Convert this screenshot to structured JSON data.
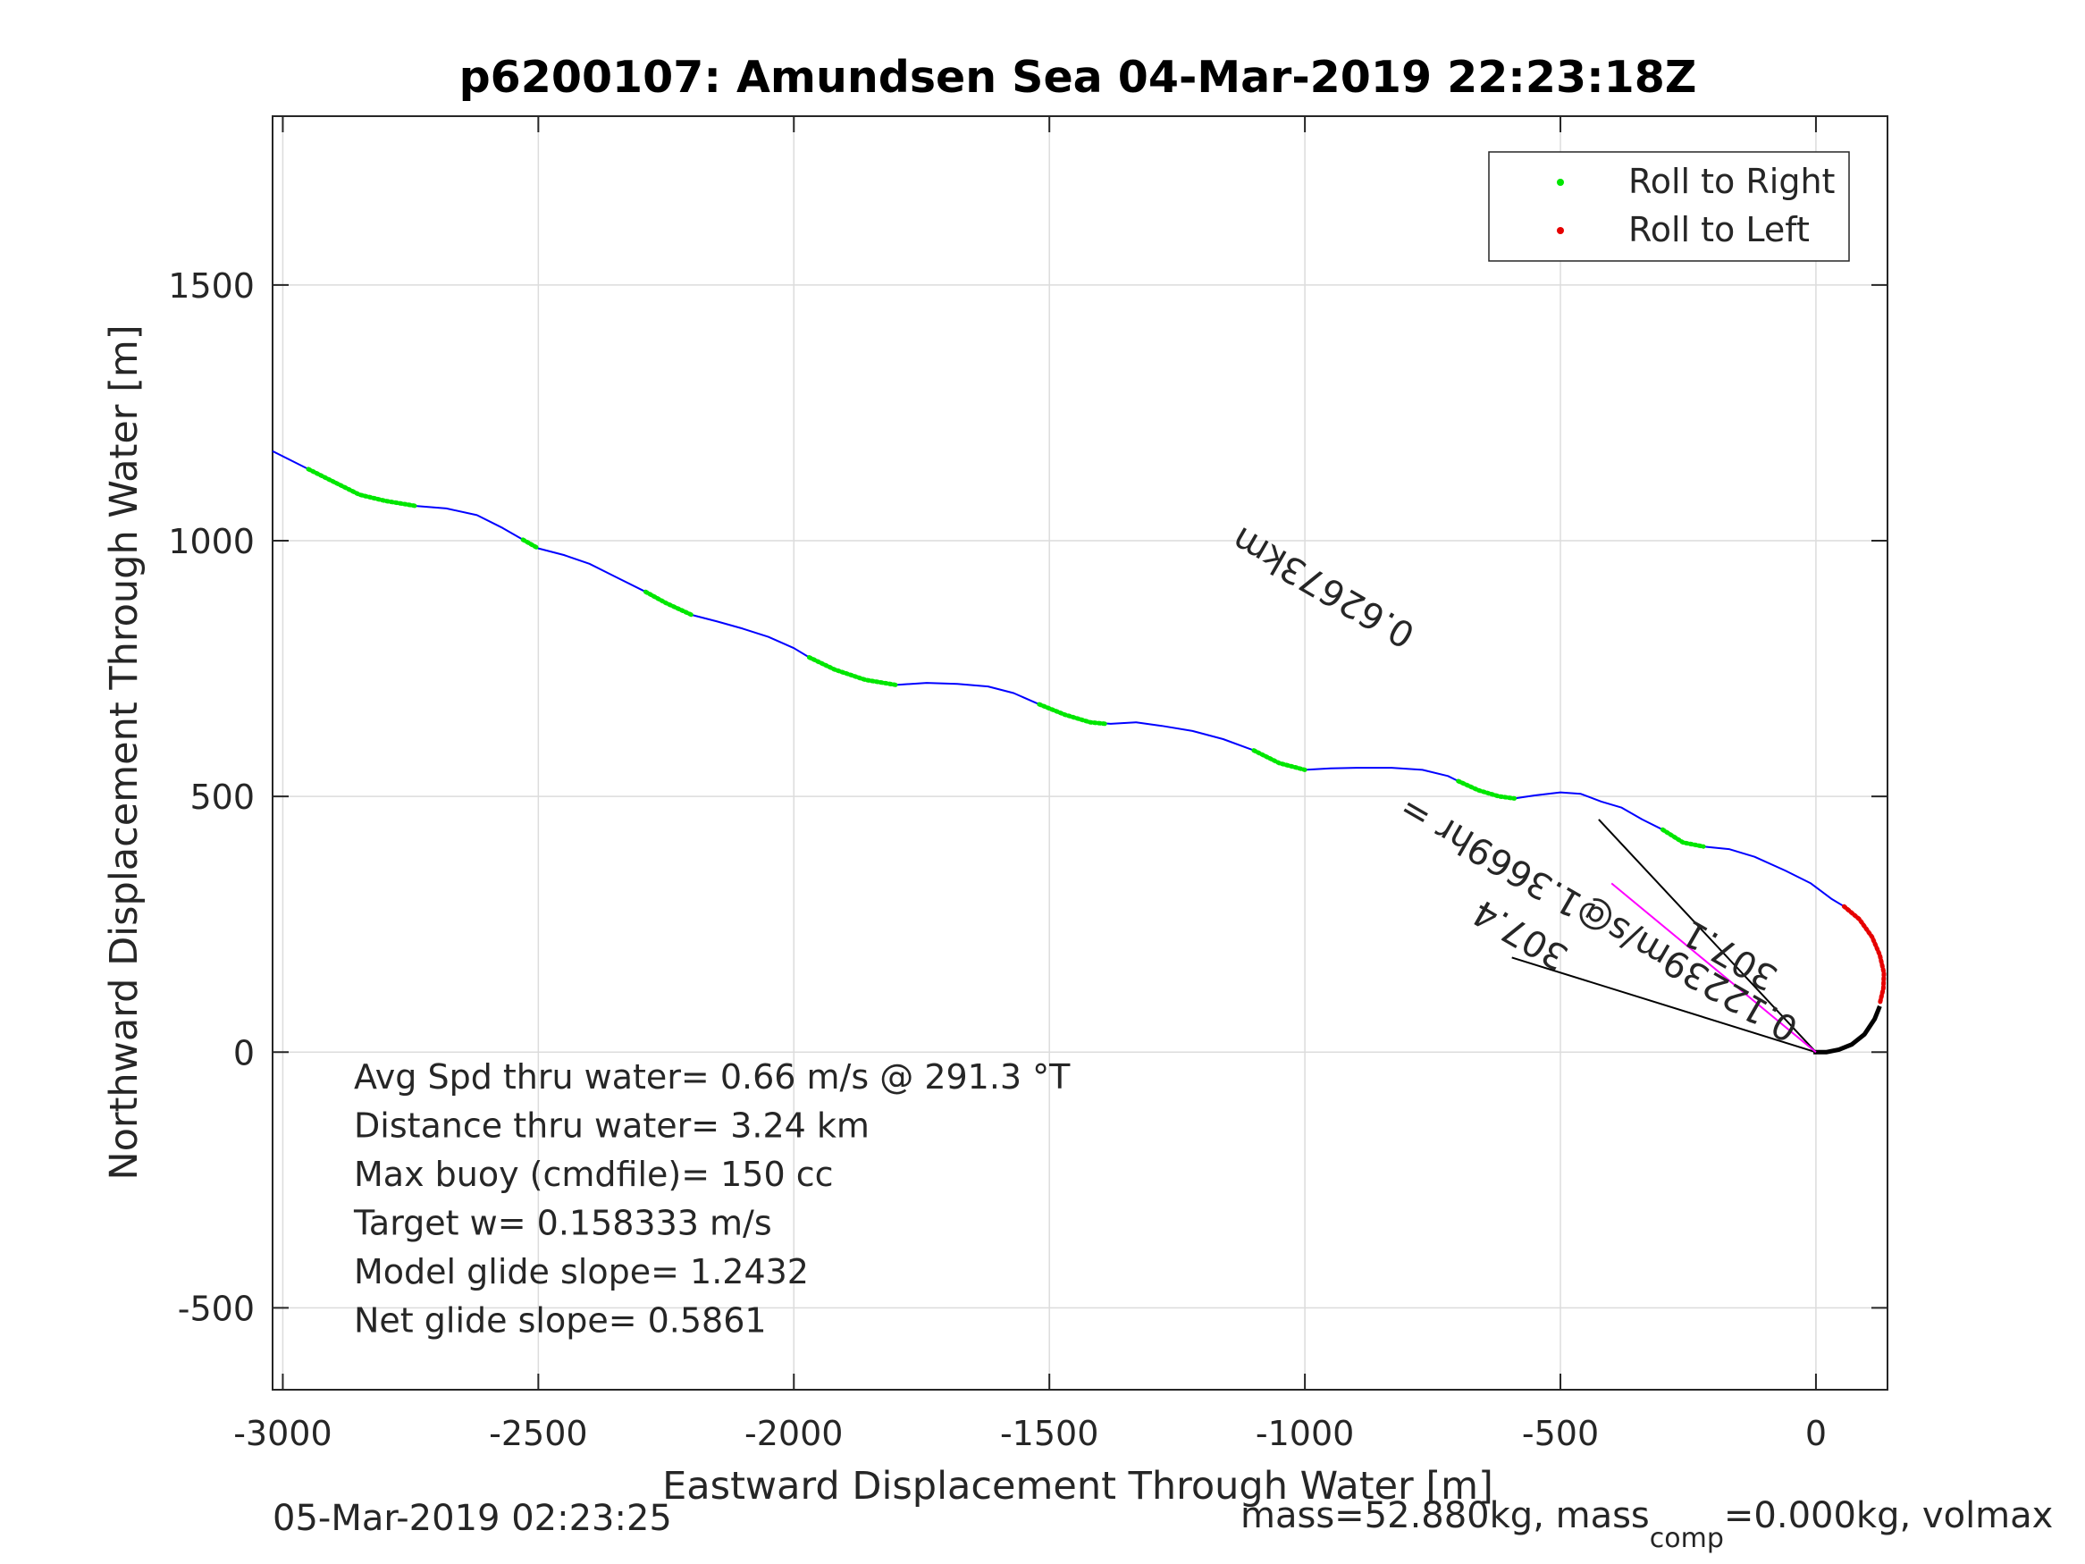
{
  "chart_data": {
    "type": "line",
    "title": "p6200107: Amundsen Sea 04-Mar-2019 22:23:18Z",
    "xlabel": "Eastward Displacement Through Water [m]",
    "ylabel": "Northward Displacement Through Water [m]",
    "xlim": [
      -3020,
      140
    ],
    "ylim": [
      -660,
      1830
    ],
    "xticks": [
      -3000,
      -2500,
      -2000,
      -1500,
      -1000,
      -500,
      0
    ],
    "xtick_labels": [
      "-3000",
      "-2500",
      "-2000",
      "-1500",
      "-1000",
      "-500",
      "0"
    ],
    "yticks": [
      -500,
      0,
      500,
      1000,
      1500
    ],
    "ytick_labels": [
      "-500",
      "0",
      "500",
      "1000",
      "1500"
    ],
    "grid": true,
    "legend_position": "top-right",
    "legend": [
      {
        "label": "Roll to Right",
        "color": "#00e600"
      },
      {
        "label": "Roll to Left",
        "color": "#e60000"
      }
    ],
    "series": [
      {
        "role": "track",
        "color": "#0000ff",
        "points": [
          [
            -3020,
            1175
          ],
          [
            -2950,
            1140
          ],
          [
            -2900,
            1115
          ],
          [
            -2850,
            1090
          ],
          [
            -2800,
            1078
          ],
          [
            -2740,
            1068
          ],
          [
            -2680,
            1063
          ],
          [
            -2620,
            1050
          ],
          [
            -2570,
            1025
          ],
          [
            -2530,
            1002
          ],
          [
            -2500,
            985
          ],
          [
            -2450,
            972
          ],
          [
            -2400,
            955
          ],
          [
            -2350,
            930
          ],
          [
            -2290,
            900
          ],
          [
            -2250,
            878
          ],
          [
            -2200,
            855
          ],
          [
            -2150,
            842
          ],
          [
            -2100,
            828
          ],
          [
            -2050,
            812
          ],
          [
            -2000,
            790
          ],
          [
            -1970,
            772
          ],
          [
            -1920,
            748
          ],
          [
            -1860,
            728
          ],
          [
            -1800,
            718
          ],
          [
            -1740,
            722
          ],
          [
            -1680,
            720
          ],
          [
            -1620,
            715
          ],
          [
            -1570,
            702
          ],
          [
            -1520,
            680
          ],
          [
            -1470,
            660
          ],
          [
            -1420,
            645
          ],
          [
            -1380,
            642
          ],
          [
            -1330,
            645
          ],
          [
            -1280,
            638
          ],
          [
            -1220,
            628
          ],
          [
            -1160,
            612
          ],
          [
            -1100,
            590
          ],
          [
            -1050,
            565
          ],
          [
            -1000,
            552
          ],
          [
            -950,
            555
          ],
          [
            -900,
            556
          ],
          [
            -830,
            556
          ],
          [
            -770,
            552
          ],
          [
            -720,
            540
          ],
          [
            -700,
            530
          ],
          [
            -660,
            512
          ],
          [
            -620,
            500
          ],
          [
            -590,
            496
          ],
          [
            -550,
            502
          ],
          [
            -500,
            508
          ],
          [
            -460,
            505
          ],
          [
            -420,
            490
          ],
          [
            -380,
            478
          ],
          [
            -340,
            455
          ],
          [
            -300,
            435
          ],
          [
            -260,
            410
          ],
          [
            -220,
            402
          ],
          [
            -170,
            397
          ],
          [
            -120,
            382
          ],
          [
            -60,
            355
          ],
          [
            -10,
            330
          ],
          [
            30,
            300
          ],
          [
            55,
            285
          ]
        ]
      },
      {
        "role": "near-surface",
        "color": "#000000",
        "points": [
          [
            -5,
            0
          ],
          [
            20,
            0
          ],
          [
            45,
            5
          ],
          [
            70,
            15
          ],
          [
            95,
            35
          ],
          [
            115,
            65
          ],
          [
            125,
            90
          ]
        ]
      }
    ],
    "roll_right_segments": [
      [
        [
          -2950,
          1140
        ],
        [
          -2900,
          1115
        ],
        [
          -2850,
          1090
        ],
        [
          -2800,
          1078
        ],
        [
          -2740,
          1068
        ]
      ],
      [
        [
          -2530,
          1002
        ],
        [
          -2500,
          985
        ]
      ],
      [
        [
          -2290,
          900
        ],
        [
          -2250,
          878
        ],
        [
          -2200,
          855
        ]
      ],
      [
        [
          -1970,
          772
        ],
        [
          -1920,
          748
        ],
        [
          -1860,
          728
        ],
        [
          -1800,
          718
        ]
      ],
      [
        [
          -1520,
          680
        ],
        [
          -1470,
          660
        ],
        [
          -1420,
          645
        ],
        [
          -1390,
          642
        ]
      ],
      [
        [
          -1100,
          590
        ],
        [
          -1050,
          565
        ],
        [
          -1000,
          552
        ]
      ],
      [
        [
          -700,
          530
        ],
        [
          -660,
          512
        ],
        [
          -620,
          500
        ],
        [
          -590,
          496
        ]
      ],
      [
        [
          -300,
          435
        ],
        [
          -260,
          410
        ],
        [
          -220,
          402
        ]
      ]
    ],
    "roll_left_segments": [
      [
        [
          55,
          285
        ],
        [
          85,
          260
        ],
        [
          110,
          225
        ],
        [
          125,
          190
        ],
        [
          133,
          155
        ],
        [
          132,
          125
        ],
        [
          125,
          95
        ]
      ]
    ],
    "annotation_lines": [
      {
        "color": "#000000",
        "points": [
          [
            -425,
            455
          ],
          [
            0,
            0
          ]
        ]
      },
      {
        "color": "#000000",
        "points": [
          [
            -595,
            185
          ],
          [
            0,
            0
          ]
        ]
      },
      {
        "color": "#ff00ff",
        "points": [
          [
            -400,
            330
          ],
          [
            0,
            0
          ]
        ]
      }
    ],
    "rotated_labels": [
      {
        "text": "0.62673km",
        "at": [
          -780,
          830
        ],
        "angle": 210
      },
      {
        "text": "0.12239m/s@1.3669hr =",
        "at": [
          -30,
          60
        ],
        "angle": 210
      },
      {
        "text": "307.4",
        "at": [
          -480,
          200
        ],
        "angle": 210
      },
      {
        "text": "307.1",
        "at": [
          -70,
          160
        ],
        "angle": 210
      }
    ],
    "stats": [
      "Avg Spd thru water=  0.66 m/s @ 291.3 °T",
      "Distance thru water=  3.24 km",
      "Max buoy (cmdfile)= 150 cc",
      "Target w= 0.158333 m/s",
      "Model glide slope= 1.2432",
      "Net glide slope= 0.5861"
    ],
    "footer_left": "05-Mar-2019 02:23:25",
    "footer_right_pre": "mass=52.880kg, mass",
    "footer_right_sub": "comp",
    "footer_right_post": "=0.000kg, volmax"
  }
}
